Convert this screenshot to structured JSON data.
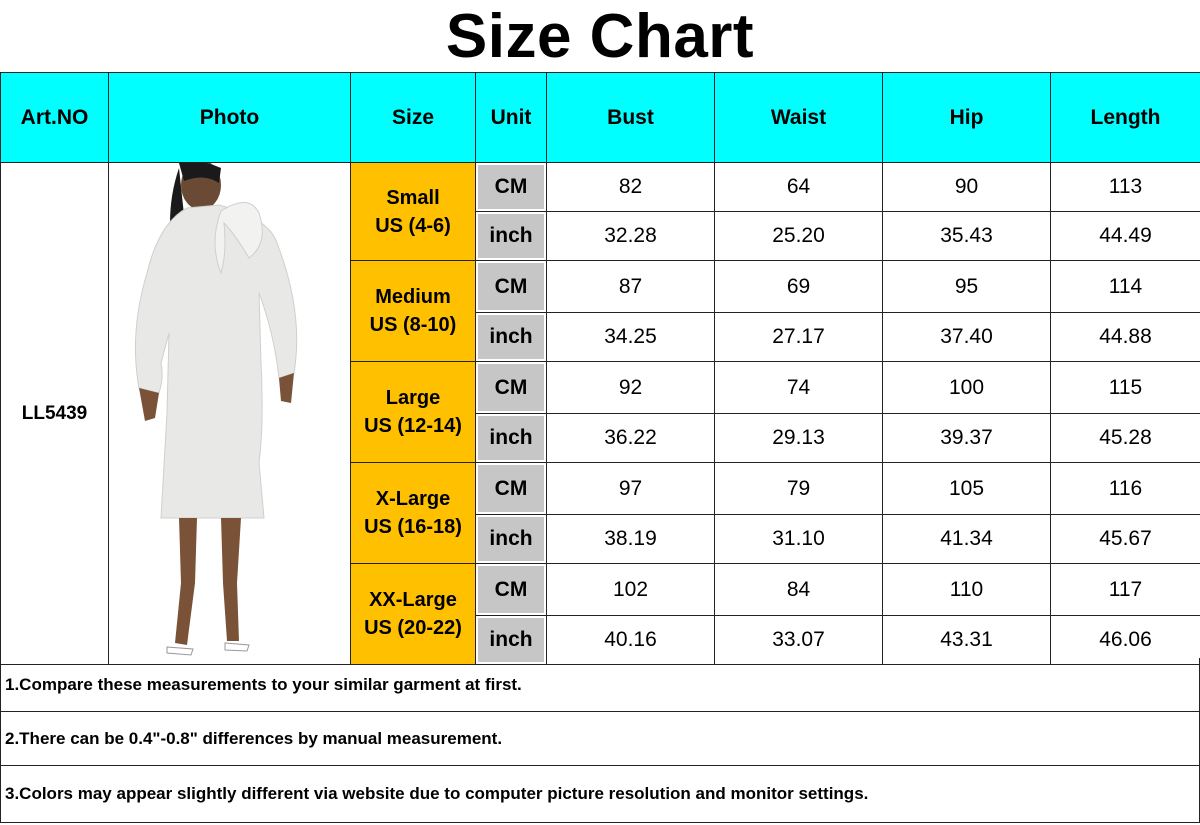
{
  "title": "Size Chart",
  "headers": [
    "Art.NO",
    "Photo",
    "Size",
    "Unit",
    "Bust",
    "Waist",
    "Hip",
    "Length"
  ],
  "art_no": "LL5439",
  "colors": {
    "header": "#00ffff",
    "size": "#ffc000",
    "unit": "#c6c6c6"
  },
  "photo_icon": "woman-white-dress-photo",
  "sizes": [
    {
      "name": "Small",
      "us": "US (4-6)",
      "rows": [
        {
          "unit": "CM",
          "values": [
            "82",
            "64",
            "90",
            "113"
          ]
        },
        {
          "unit": "inch",
          "values": [
            "32.28",
            "25.20",
            "35.43",
            "44.49"
          ]
        }
      ]
    },
    {
      "name": "Medium",
      "us": "US (8-10)",
      "rows": [
        {
          "unit": "CM",
          "values": [
            "87",
            "69",
            "95",
            "114"
          ]
        },
        {
          "unit": "inch",
          "values": [
            "34.25",
            "27.17",
            "37.40",
            "44.88"
          ]
        }
      ]
    },
    {
      "name": "Large",
      "us": "US (12-14)",
      "rows": [
        {
          "unit": "CM",
          "values": [
            "92",
            "74",
            "100",
            "115"
          ]
        },
        {
          "unit": "inch",
          "values": [
            "36.22",
            "29.13",
            "39.37",
            "45.28"
          ]
        }
      ]
    },
    {
      "name": "X-Large",
      "us": "US (16-18)",
      "rows": [
        {
          "unit": "CM",
          "values": [
            "97",
            "79",
            "105",
            "116"
          ]
        },
        {
          "unit": "inch",
          "values": [
            "38.19",
            "31.10",
            "41.34",
            "45.67"
          ]
        }
      ]
    },
    {
      "name": "XX-Large",
      "us": "US (20-22)",
      "rows": [
        {
          "unit": "CM",
          "values": [
            "102",
            "84",
            "110",
            "117"
          ]
        },
        {
          "unit": "inch",
          "values": [
            "40.16",
            "33.07",
            "43.31",
            "46.06"
          ]
        }
      ]
    }
  ],
  "notes": [
    "1.Compare these measurements to your similar garment at first.",
    "2.There can be 0.4\"-0.8\" differences by manual measurement.",
    "3.Colors may appear slightly different via website due to computer picture resolution and monitor settings."
  ]
}
